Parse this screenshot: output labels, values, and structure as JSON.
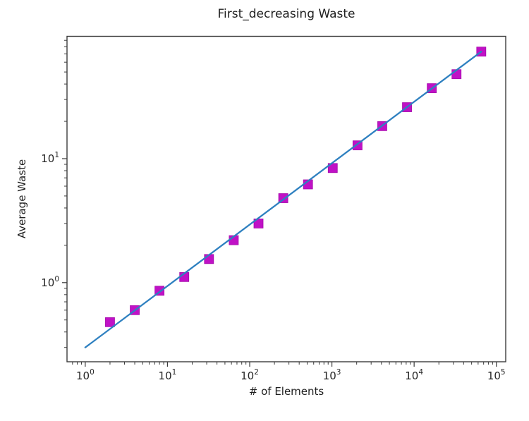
{
  "figure": {
    "background": "#ffffff",
    "spine_color": "#3c3c3c",
    "tick_color": "#3c3c3c",
    "text_color": "#262626"
  },
  "chart_data": {
    "type": "scatter",
    "title": "First_decreasing Waste",
    "xlabel": "# of Elements",
    "ylabel": "Average Waste",
    "xscale": "log",
    "yscale": "log",
    "grid": false,
    "legend": null,
    "xlim": [
      0.6,
      130000
    ],
    "ylim": [
      0.23,
      97
    ],
    "x_major_tick_exponents": [
      0,
      1,
      2,
      3,
      4,
      5
    ],
    "y_major_tick_exponents": [
      0,
      1
    ],
    "x_tick_label_base": "10",
    "series": [
      {
        "name": "measured-average-waste",
        "kind": "scatter",
        "marker": "square",
        "marker_size": 13,
        "color": "#c011c6",
        "edge_color": "#a50cab",
        "x": [
          2,
          4,
          8,
          16,
          32,
          64,
          128,
          256,
          512,
          1024,
          2048,
          4096,
          8192,
          16384,
          32768,
          65536
        ],
        "y": [
          0.48,
          0.6,
          0.86,
          1.11,
          1.55,
          2.2,
          3.0,
          4.8,
          6.2,
          8.4,
          12.8,
          18.3,
          26,
          37,
          48,
          73
        ]
      },
      {
        "name": "power-law-fit-line",
        "kind": "line",
        "color": "#2e80c0",
        "line_width": 2.3,
        "x": [
          1,
          65536
        ],
        "y": [
          0.3,
          73
        ]
      }
    ]
  }
}
